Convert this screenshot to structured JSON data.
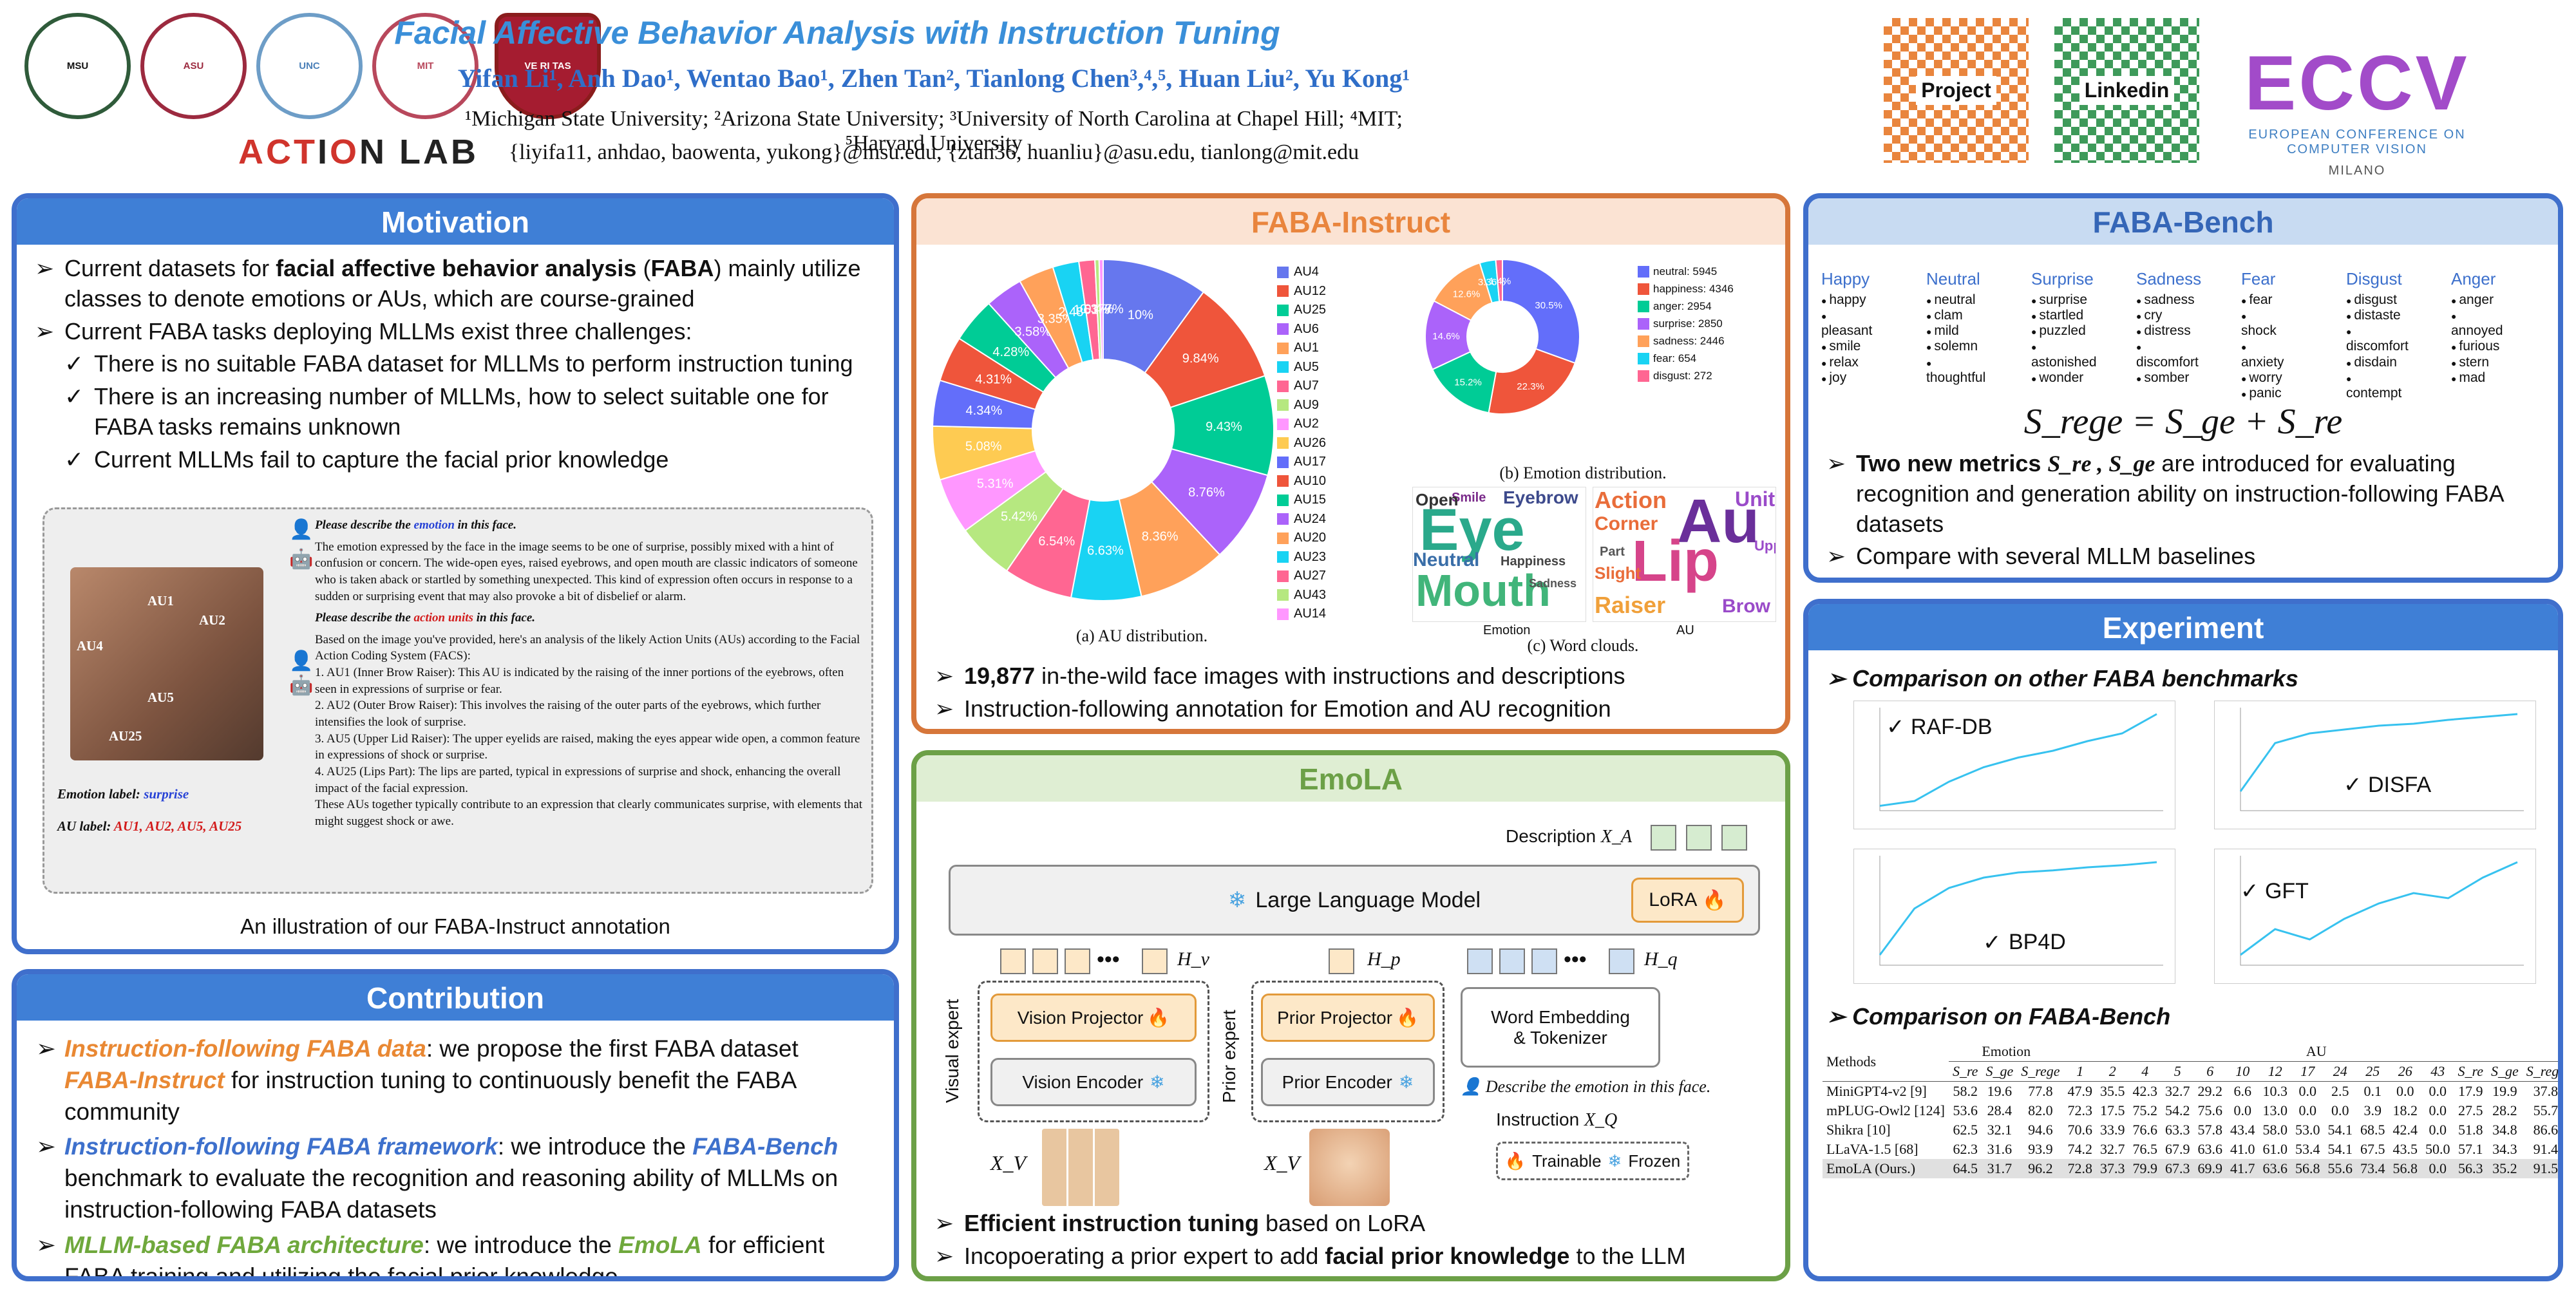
{
  "header": {
    "title": "Facial Affective Behavior Analysis with Instruction Tuning",
    "authors": "Yifan Li¹, Anh Dao¹, Wentao Bao¹, Zhen Tan², Tianlong Chen³,⁴,⁵, Huan Liu², Yu Kong¹",
    "affiliations": "¹Michigan State University; ²Arizona State University; ³University of North Carolina at Chapel Hill; ⁴MIT; ⁵Harvard University",
    "emails": "{liyifa11, anhdao, baowenta, yukong}@msu.edu, {ztan36, huanliu}@asu.edu, tianlong@mit.edu",
    "lab_logo": [
      "ACT",
      "I",
      "O",
      "N LAB"
    ],
    "qr_project": "Project",
    "qr_linkedin": "Linkedin",
    "conference_logo": "ECCV",
    "conference_name": "EUROPEAN CONFERENCE ON COMPUTER VISION",
    "conference_city": "MILANO"
  },
  "motivation": {
    "heading": "Motivation",
    "b1_pre": "Current datasets for ",
    "b1_bold": "facial affective behavior analysis",
    "b1_mid": " (",
    "b1_abbr": "FABA",
    "b1_post": ") mainly utilize classes to denote emotions or AUs, which are course-grained",
    "b2": "Current FABA tasks deploying MLLMs exist three challenges:",
    "c1": "There is no suitable FABA dataset for MLLMs to perform instruction tuning",
    "c2": "There is an increasing number of MLLMs, how to select suitable one for FABA tasks remains unknown",
    "c3": "Current MLLMs fail to capture the facial prior knowledge",
    "demo": {
      "face_labels": [
        "AU1",
        "AU2",
        "AU4",
        "AU5",
        "AU25"
      ],
      "q1_pre": "Please describe the ",
      "q1_key": "emotion",
      "q1_post": " in this face.",
      "a1": "The emotion expressed by the face in the image seems to be one of surprise, possibly mixed with a hint of confusion or concern. The wide-open eyes, raised eyebrows, and open mouth are classic indicators of someone who is taken aback or startled by something unexpected. This kind of expression often occurs in response to a sudden or surprising event that may also provoke a bit of disbelief or alarm.",
      "q2_pre": "Please describe the ",
      "q2_key": "action units",
      "q2_post": " in this face.",
      "a2_intro": "Based on the image you've provided, here's an analysis of the likely Action Units (AUs) according to the Facial Action Coding System (FACS):",
      "a2_1": "1. AU1 (Inner Brow Raiser): This AU is indicated by the raising of the inner portions of the eyebrows, often seen in expressions of surprise or fear.",
      "a2_2": "2. AU2 (Outer Brow Raiser): This involves the raising of the outer parts of the eyebrows, which further intensifies the look of surprise.",
      "a2_3": "3. AU5 (Upper Lid Raiser): The upper eyelids are raised, making the eyes appear wide open, a common feature in expressions of shock or surprise.",
      "a2_4": "4. AU25 (Lips Part): The lips are parted, typical in expressions of surprise and shock, enhancing the overall impact of the facial expression.",
      "a2_end": "These AUs together typically contribute to an expression that clearly communicates surprise, with elements that might suggest shock or awe.",
      "emotion_label": "Emotion label:",
      "emotion_value": "surprise",
      "au_label": "AU label:",
      "au_value": "AU1, AU2, AU5, AU25"
    },
    "caption": "An illustration of our FABA-Instruct annotation"
  },
  "contribution": {
    "heading": "Contribution",
    "p1_key": "Instruction-following FABA data",
    "p1_a": ": we propose the first FABA dataset ",
    "p1_name": "FABA-Instruct",
    "p1_b": " for instruction tuning to continuously benefit the FABA community",
    "p2_key": "Instruction-following FABA framework",
    "p2_a": ": we introduce the ",
    "p2_name": "FABA-Bench",
    "p2_b": " benchmark to evaluate the recognition and reasoning ability of MLLMs on instruction-following FABA datasets",
    "p3_key": "MLLM-based FABA architecture",
    "p3_a": ": we introduce the ",
    "p3_name": "EmoLA",
    "p3_b": " for efficient FABA training and utilizing the facial prior knowledge"
  },
  "faba_instruct": {
    "heading": "FABA-Instruct",
    "au_caption": "(a) AU distribution.",
    "emo_caption": "(b) Emotion distribution.",
    "wc_caption": "(c) Word clouds.",
    "wc_labels": [
      "Emotion",
      "AU"
    ],
    "wc_emotion_words": [
      "Eye",
      "Mouth",
      "Neutral",
      "Eyebrow",
      "Happiness",
      "Smile",
      "Sadness",
      "Open"
    ],
    "wc_au_words": [
      "Au",
      "Lip",
      "Action",
      "Unit",
      "Corner",
      "Raiser",
      "Brow",
      "Slight",
      "Part",
      "Upper"
    ],
    "bullet1_bold": "19,877",
    "bullet1_rest": " in-the-wild face images with instructions and descriptions",
    "bullet2": "Instruction-following annotation for Emotion and AU recognition"
  },
  "chart_data": [
    {
      "type": "pie",
      "title": "",
      "categories": [
        "AU4",
        "AU12",
        "AU25",
        "AU6",
        "AU1",
        "AU5",
        "AU7",
        "AU9",
        "AU2",
        "AU26",
        "AU17",
        "AU10",
        "AU15",
        "AU24",
        "AU20",
        "AU23",
        "AU27",
        "AU43",
        "AU14"
      ],
      "values": [
        10,
        9.84,
        9.43,
        8.76,
        8.36,
        6.63,
        6.54,
        5.42,
        5.31,
        5.08,
        4.34,
        4.31,
        4.28,
        3.58,
        3.35,
        2.48,
        1.51,
        0.4,
        0.377
      ],
      "labels": [
        "10%",
        "9.84%",
        "9.43%",
        "8.76%",
        "8.36%",
        "6.63%",
        "6.54%",
        "5.42%",
        "5.31%",
        "5.08%",
        "4.34%",
        "4.31%",
        "4.28%",
        "3.58%",
        "3.35%",
        "2.48%",
        "1.51%",
        "0.4%",
        "0.377%"
      ],
      "colors": [
        "#6677ee",
        "#ef553b",
        "#00cc96",
        "#ab63fa",
        "#ffa15a",
        "#19d3f3",
        "#ff6692",
        "#b6e880",
        "#ff97ff",
        "#fecb52",
        "#636efa",
        "#ef553b",
        "#00cc96",
        "#ab63fa",
        "#ffa15a",
        "#19d3f3",
        "#ff6692",
        "#b6e880",
        "#ff97ff"
      ],
      "legend": "right"
    },
    {
      "type": "pie",
      "title": "",
      "categories": [
        "neutral: 5945",
        "happiness: 4346",
        "anger: 2954",
        "surprise: 2850",
        "sadness: 2446",
        "fear: 654",
        "disgust: 272"
      ],
      "values": [
        5945,
        4346,
        2954,
        2850,
        2446,
        654,
        272
      ],
      "labels": [
        "30.5%",
        "22.3%",
        "15.2%",
        "14.6%",
        "12.6%",
        "3.36%",
        "1.4%"
      ],
      "colors": [
        "#636efa",
        "#ef553b",
        "#00cc96",
        "#ab63fa",
        "#ffa15a",
        "#19d3f3",
        "#ff6692"
      ],
      "legend": "right"
    }
  ],
  "emola": {
    "heading": "EmoLA",
    "description_label": "Description",
    "xa": "X_A",
    "llm": "Large Language Model",
    "lora": "LoRA",
    "hv": "H_v",
    "hp": "H_p",
    "hq": "H_q",
    "visual_expert": "Visual expert",
    "prior_expert": "Prior expert",
    "vision_projector": "Vision Projector",
    "vision_encoder": "Vision Encoder",
    "prior_projector": "Prior Projector",
    "prior_encoder": "Prior Encoder",
    "word_embedding": "Word Embedding",
    "tokenizer": "& Tokenizer",
    "instruction_text": "Describe the emotion in this face.",
    "instruction_label": "Instruction",
    "xq": "X_Q",
    "xv1": "X_V",
    "xv2": "X_V",
    "trainable": "Trainable",
    "frozen": "Frozen",
    "bullet1_bold": "Efficient instruction tuning",
    "bullet1_rest": " based on LoRA",
    "bullet2_pre": "Incopoerating a prior expert to add ",
    "bullet2_bold": "facial prior knowledge",
    "bullet2_post": " to the LLM"
  },
  "faba_bench": {
    "heading": "FABA-Bench",
    "categories": [
      {
        "name": "Happy",
        "words": [
          "happy",
          "pleasant",
          "smile",
          "relax",
          "joy"
        ]
      },
      {
        "name": "Neutral",
        "words": [
          "neutral",
          "clam",
          "mild",
          "solemn",
          "thoughtful"
        ]
      },
      {
        "name": "Surprise",
        "words": [
          "surprise",
          "startled",
          "puzzled",
          "astonished",
          "wonder"
        ]
      },
      {
        "name": "Sadness",
        "words": [
          "sadness",
          "cry",
          "distress",
          "discomfort",
          "somber"
        ]
      },
      {
        "name": "Fear",
        "words": [
          "fear",
          "shock",
          "anxiety",
          "worry",
          "panic"
        ]
      },
      {
        "name": "Disgust",
        "words": [
          "disgust",
          "distaste",
          "discomfort",
          "disdain",
          "contempt"
        ]
      },
      {
        "name": "Anger",
        "words": [
          "anger",
          "annoyed",
          "furious",
          "stern",
          "mad"
        ]
      }
    ],
    "formula": "S_rege = S_ge + S_re",
    "bullet1_a": "Two new metrics ",
    "bullet1_m": "S_re , S_ge",
    "bullet1_b": " are introduced for evaluating recognition and generation ability on instruction-following FABA datasets",
    "bullet2": "Compare with several MLLM baselines"
  },
  "experiment": {
    "heading": "Experiment",
    "sub1": "Comparison on other FABA benchmarks",
    "charts": [
      "RAF-DB",
      "DISFA",
      "BP4D",
      "GFT"
    ],
    "sub2": "Comparison on FABA-Bench",
    "table": {
      "methods_header": "Methods",
      "emotion_header": "Emotion",
      "au_header": "AU",
      "emotion_cols": [
        "S_re",
        "S_ge",
        "S_rege"
      ],
      "au_cols": [
        "1",
        "2",
        "4",
        "5",
        "6",
        "10",
        "12",
        "17",
        "24",
        "25",
        "26",
        "43",
        "S_re",
        "S_ge",
        "S_rege"
      ],
      "rows": [
        {
          "method": "MiniGPT4-v2 [9]",
          "vals": [
            "58.2",
            "19.6",
            "77.8",
            "47.9",
            "35.5",
            "42.3",
            "32.7",
            "29.2",
            "6.6",
            "10.3",
            "0.0",
            "2.5",
            "0.1",
            "0.0",
            "0.0",
            "17.9",
            "19.9",
            "37.8"
          ]
        },
        {
          "method": "mPLUG-Owl2 [124]",
          "vals": [
            "53.6",
            "28.4",
            "82.0",
            "72.3",
            "17.5",
            "75.2",
            "54.2",
            "75.6",
            "0.0",
            "13.0",
            "0.0",
            "0.0",
            "3.9",
            "18.2",
            "0.0",
            "27.5",
            "28.2",
            "55.7"
          ]
        },
        {
          "method": "Shikra [10]",
          "vals": [
            "62.5",
            "32.1",
            "94.6",
            "70.6",
            "33.9",
            "76.6",
            "63.3",
            "57.8",
            "43.4",
            "58.0",
            "53.0",
            "54.1",
            "68.5",
            "42.4",
            "0.0",
            "51.8",
            "34.8",
            "86.6"
          ]
        },
        {
          "method": "LLaVA-1.5 [68]",
          "vals": [
            "62.3",
            "31.6",
            "93.9",
            "74.2",
            "32.7",
            "76.5",
            "67.9",
            "63.6",
            "41.0",
            "61.0",
            "53.4",
            "54.1",
            "67.5",
            "43.5",
            "50.0",
            "57.1",
            "34.3",
            "91.4"
          ]
        },
        {
          "method": "EmoLA (Ours.)",
          "vals": [
            "64.5",
            "31.7",
            "96.2",
            "72.8",
            "37.3",
            "79.9",
            "67.3",
            "69.9",
            "41.7",
            "63.6",
            "56.8",
            "55.6",
            "73.4",
            "56.8",
            "0.0",
            "56.3",
            "35.2",
            "91.5"
          ]
        }
      ]
    }
  },
  "colors": {
    "blue_panel": "#3f7fd6",
    "green_panel": "#6ca047",
    "orange_panel": "#ec8a3f",
    "title_blue": "#3a8fd9"
  }
}
